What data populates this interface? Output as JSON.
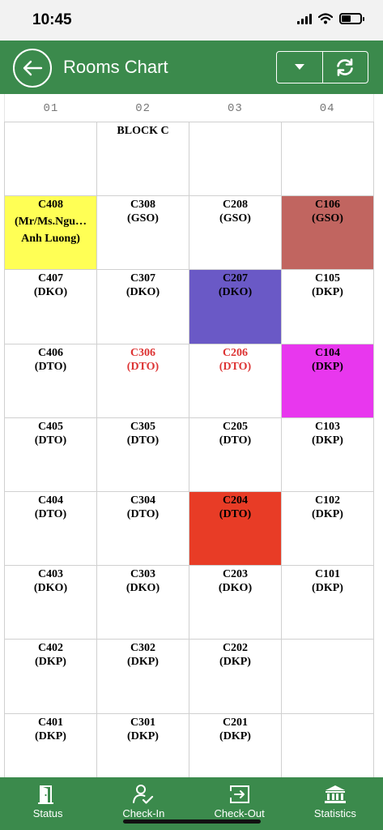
{
  "status_bar": {
    "time": "10:45",
    "battery_level": 0.5
  },
  "header": {
    "title": "Rooms Chart",
    "back_icon": "arrow-left-icon",
    "dropdown_icon": "caret-down-icon",
    "refresh_icon": "refresh-icon",
    "color": "#3b8a4c"
  },
  "columns": [
    "01",
    "02",
    "03",
    "04"
  ],
  "colors": {
    "yellow": "#ffff55",
    "brown": "#c16560",
    "purple": "#6a59c6",
    "magenta": "#e837ee",
    "red": "#e83c26",
    "text_red": "#dd3333"
  },
  "rooms": [
    [
      {
        "num": "",
        "code": ""
      },
      {
        "num": "BLOCK C",
        "code": ""
      },
      {
        "num": "",
        "code": ""
      },
      {
        "num": "",
        "code": ""
      }
    ],
    [
      {
        "num": "C408",
        "code": "(Mr/Ms.Ngu…",
        "extra": "Anh Luong)",
        "bg": "#ffff55"
      },
      {
        "num": "C308",
        "code": "(GSO)"
      },
      {
        "num": "C208",
        "code": "(GSO)"
      },
      {
        "num": "C106",
        "code": "(GSO)",
        "bg": "#c16560"
      }
    ],
    [
      {
        "num": "C407",
        "code": "(DKO)"
      },
      {
        "num": "C307",
        "code": "(DKO)"
      },
      {
        "num": "C207",
        "code": "(DKO)",
        "bg": "#6a59c6"
      },
      {
        "num": "C105",
        "code": "(DKP)"
      }
    ],
    [
      {
        "num": "C406",
        "code": "(DTO)"
      },
      {
        "num": "C306",
        "code": "(DTO)",
        "color": "#dd3333"
      },
      {
        "num": "C206",
        "code": "(DTO)",
        "color": "#dd3333"
      },
      {
        "num": "C104",
        "code": "(DKP)",
        "bg": "#e837ee"
      }
    ],
    [
      {
        "num": "C405",
        "code": "(DTO)"
      },
      {
        "num": "C305",
        "code": "(DTO)"
      },
      {
        "num": "C205",
        "code": "(DTO)"
      },
      {
        "num": "C103",
        "code": "(DKP)"
      }
    ],
    [
      {
        "num": "C404",
        "code": "(DTO)"
      },
      {
        "num": "C304",
        "code": "(DTO)"
      },
      {
        "num": "C204",
        "code": "(DTO)",
        "bg": "#e83c26"
      },
      {
        "num": "C102",
        "code": "(DKP)"
      }
    ],
    [
      {
        "num": "C403",
        "code": "(DKO)"
      },
      {
        "num": "C303",
        "code": "(DKO)"
      },
      {
        "num": "C203",
        "code": "(DKO)"
      },
      {
        "num": "C101",
        "code": "(DKP)"
      }
    ],
    [
      {
        "num": "C402",
        "code": "(DKP)"
      },
      {
        "num": "C302",
        "code": "(DKP)"
      },
      {
        "num": "C202",
        "code": "(DKP)"
      },
      {
        "num": "",
        "code": ""
      }
    ],
    [
      {
        "num": "C401",
        "code": "(DKP)"
      },
      {
        "num": "C301",
        "code": "(DKP)"
      },
      {
        "num": "C201",
        "code": "(DKP)"
      },
      {
        "num": "",
        "code": ""
      }
    ]
  ],
  "tabs": [
    {
      "label": "Status",
      "icon": "door-exit-icon"
    },
    {
      "label": "Check-In",
      "icon": "user-check-icon"
    },
    {
      "label": "Check-Out",
      "icon": "sign-out-box-icon"
    },
    {
      "label": "Statistics",
      "icon": "bank-building-icon"
    }
  ]
}
